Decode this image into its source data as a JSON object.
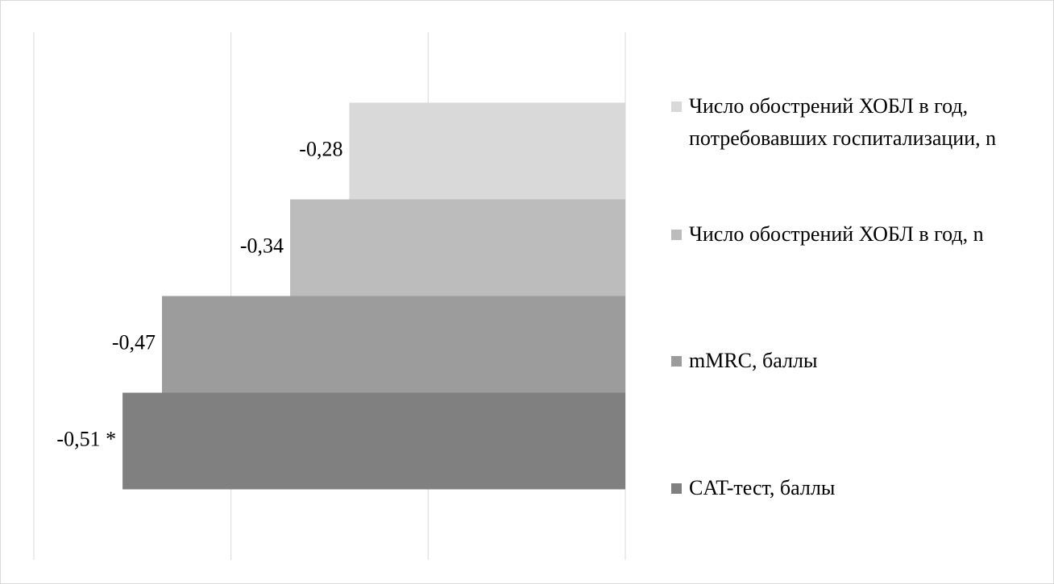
{
  "chart_data": {
    "type": "bar",
    "orientation": "horizontal",
    "categories": [
      null
    ],
    "series": [
      {
        "name": "Число обострений ХОБЛ в год, потребовавших госпитализации, n",
        "color": "#d9d9d9",
        "values": [
          -0.28
        ],
        "value_labels": [
          "-0,28"
        ]
      },
      {
        "name": "Число обострений ХОБЛ в год, n",
        "color": "#bcbcbc",
        "values": [
          -0.34
        ],
        "value_labels": [
          "-0,34"
        ]
      },
      {
        "name": "mMRC, баллы",
        "color": "#9c9c9c",
        "values": [
          -0.47
        ],
        "value_labels": [
          "-0,47"
        ]
      },
      {
        "name": "CAT-тест, баллы",
        "color": "#808080",
        "values": [
          -0.51
        ],
        "value_labels": [
          "-0,51 *"
        ]
      }
    ],
    "xlim": [
      -0.6,
      0
    ],
    "xticks": [
      -0.6,
      -0.4,
      -0.2,
      0
    ],
    "grid": true,
    "legend": "right"
  }
}
